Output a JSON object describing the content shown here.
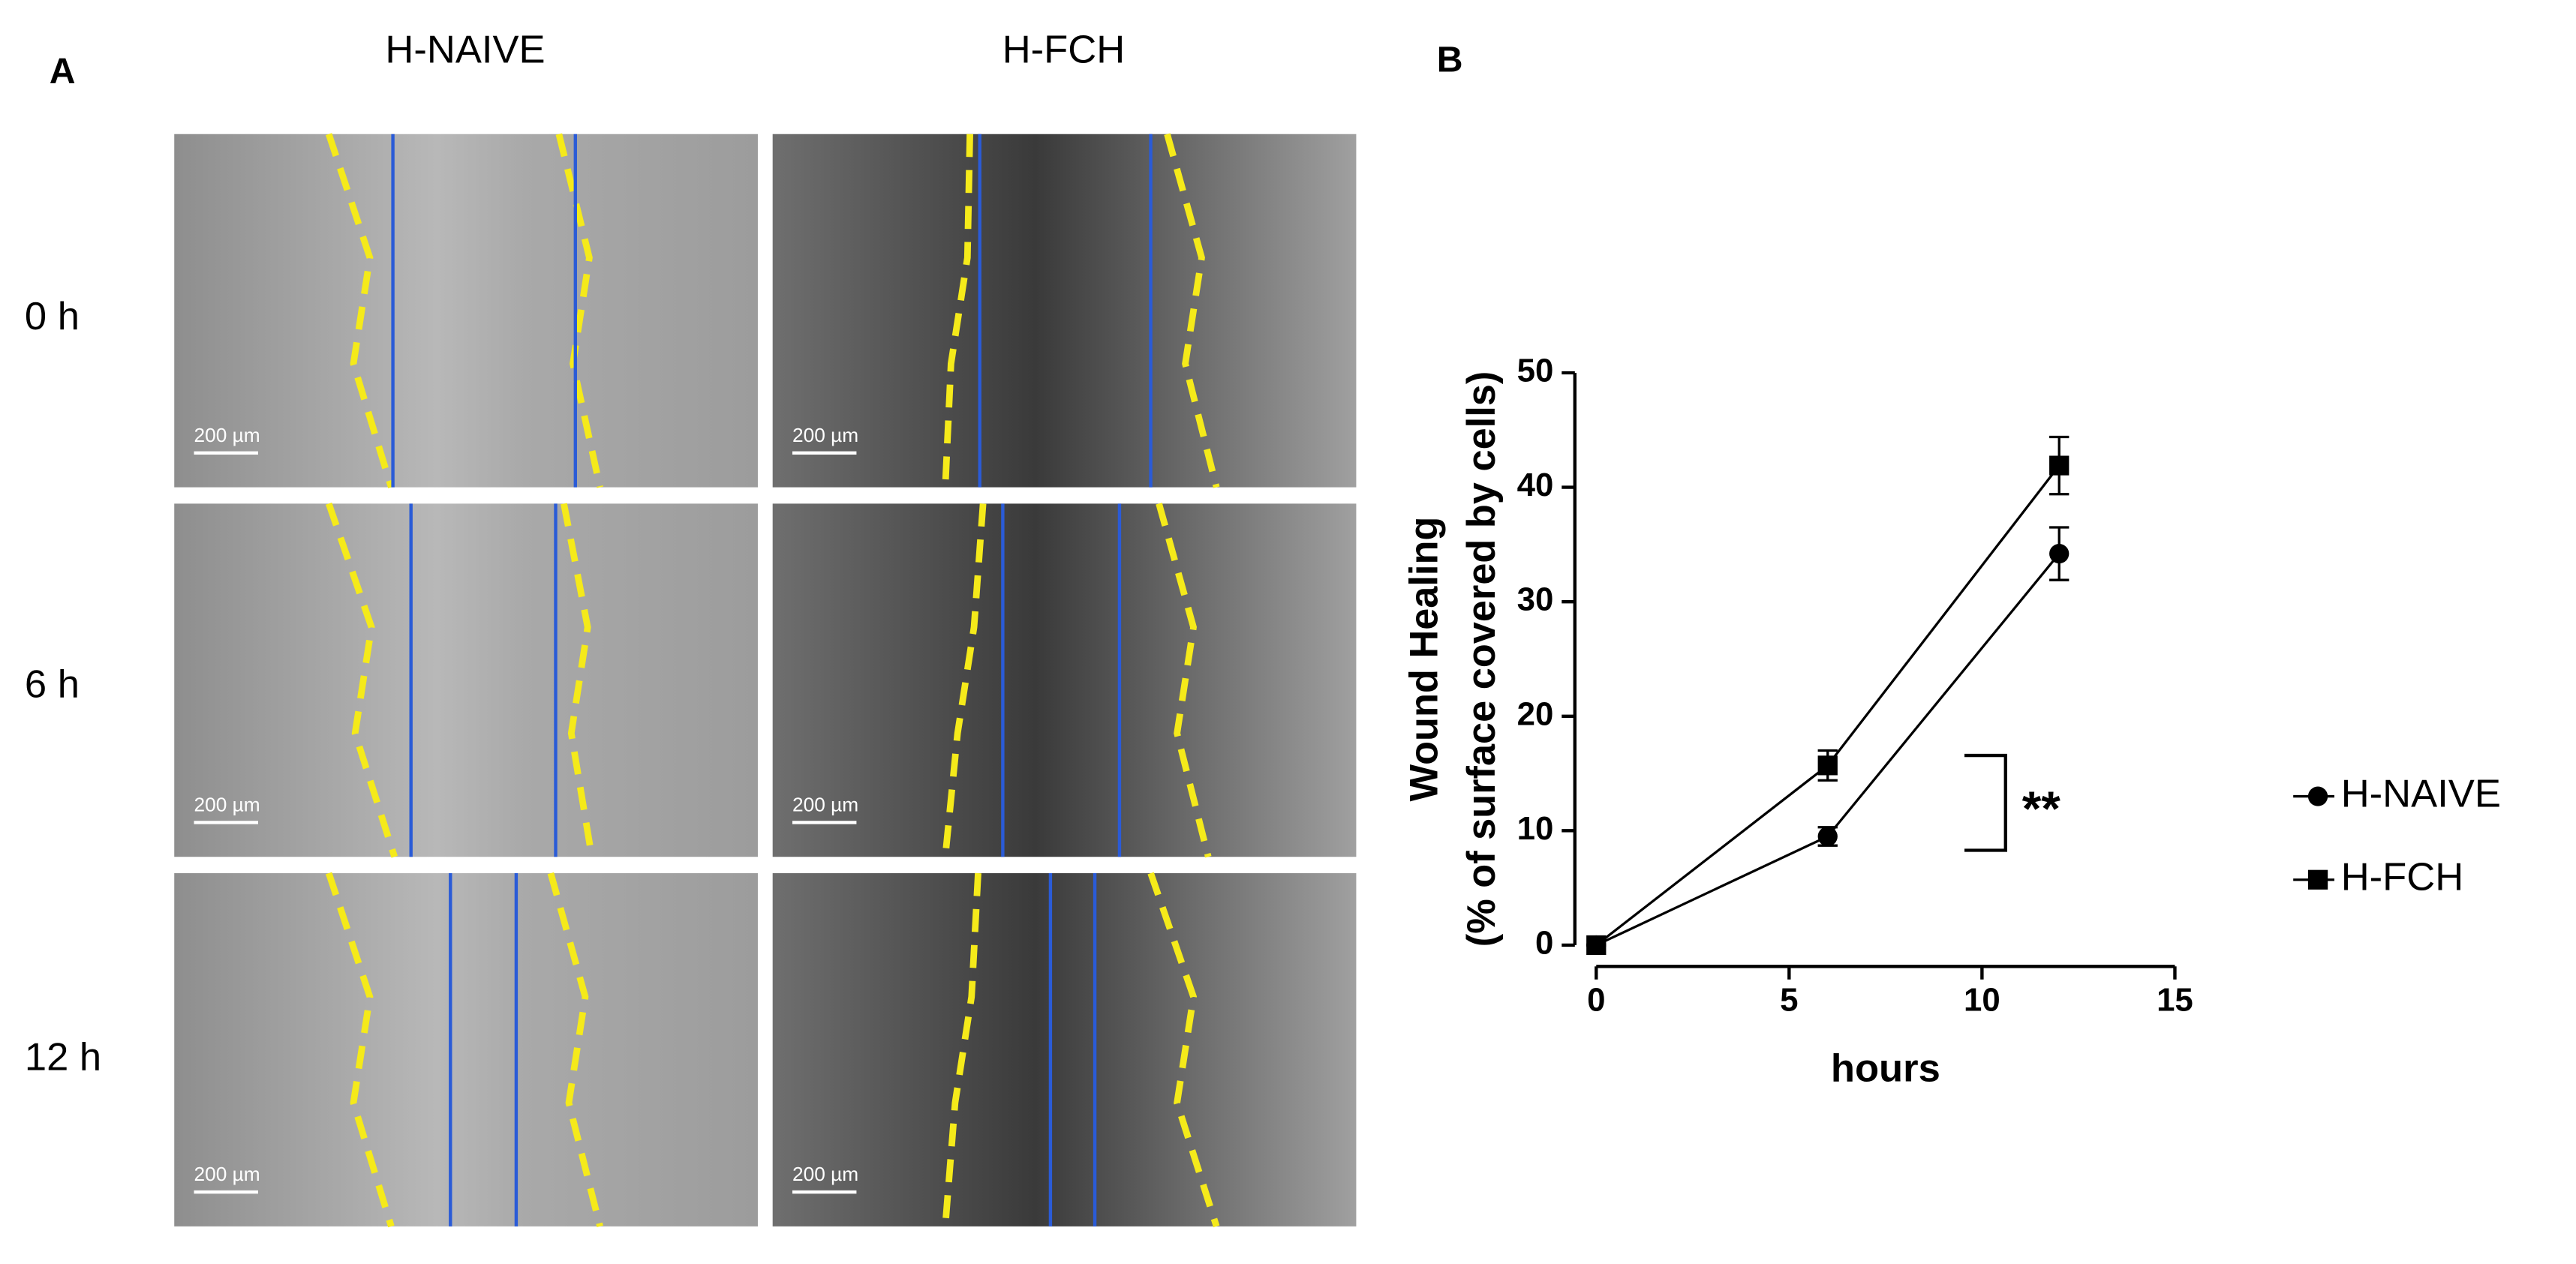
{
  "figure": {
    "panel_label": "A",
    "columns": [
      "H-NAIVE",
      "H-FCH"
    ],
    "rows": [
      "0 h",
      "6 h",
      "12 h"
    ],
    "scale_bar": "200 µm"
  },
  "chart_data": {
    "type": "line",
    "panel_label": "B",
    "xlabel": "hours",
    "ylabel": [
      "Wound Healing",
      "(% of surface covered by cells)"
    ],
    "x": [
      0,
      6,
      12
    ],
    "series": [
      {
        "name": "H-NAIVE",
        "color": "#000000",
        "marker": "circle",
        "values": [
          0,
          9.5,
          34.2
        ],
        "errors": [
          0,
          0.8,
          2.3
        ]
      },
      {
        "name": "H-FCH",
        "color": "#000000",
        "marker": "square",
        "values": [
          0,
          15.7,
          41.9
        ],
        "errors": [
          0,
          1.3,
          2.5
        ]
      }
    ],
    "xlim": [
      0,
      15
    ],
    "xticks": [
      0,
      5,
      10,
      15
    ],
    "ylim": [
      0,
      50
    ],
    "yticks": [
      0,
      10,
      20,
      30,
      40,
      50
    ],
    "annotation": "**",
    "legend": "right"
  }
}
